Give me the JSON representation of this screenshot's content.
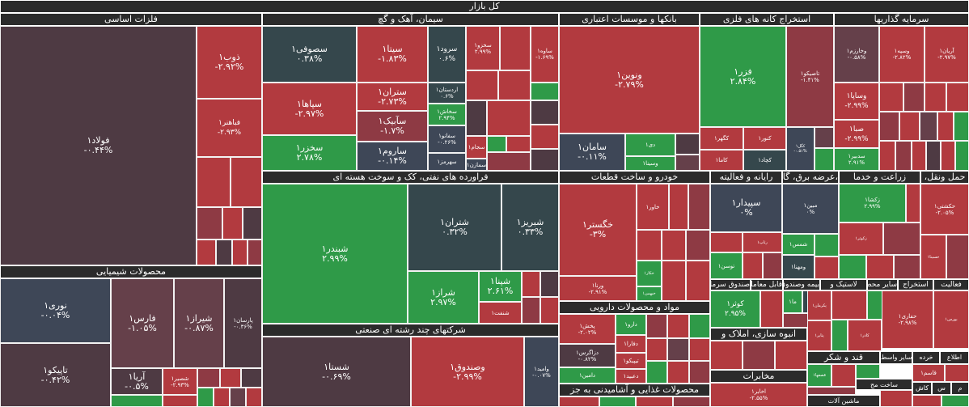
{
  "market_title": "کل بازار",
  "colors": {
    "strong_green": "#2f9a48",
    "light_green": "#3c8f45",
    "dark_slate": "#35474c",
    "slate": "#3e4757",
    "dark_maroon": "#4e3a43",
    "maroon": "#65404a",
    "red": "#b23a3f",
    "dark_red": "#8e3a44",
    "header_bg": "#2b2b2b"
  },
  "sectors": [
    {
      "name": "فلزات اساسی"
    },
    {
      "name": "سیمان، آهک و گچ"
    },
    {
      "name": "بانکها و موسسات اعتباری"
    },
    {
      "name": "استخراج کانه های فلزی"
    },
    {
      "name": "سرمایه گذاریها"
    },
    {
      "name": "محصولات شیمیایی"
    },
    {
      "name": "فراورده های نفتی، کک و سوخت هسته ای"
    },
    {
      "name": "خودرو و ساخت قطعات"
    },
    {
      "name": "رایانه و فعالیته"
    },
    {
      "name": "،عرضه برق، گاز"
    },
    {
      "name": "زراعت و خدما"
    },
    {
      "name": "حمل ونقل،"
    },
    {
      "name": "شرکتهای چند رشته ای صنعتی"
    },
    {
      "name": "مواد و محصولات دارویی"
    },
    {
      "name": "محصولات غذایی و آشامیدنی به جز"
    },
    {
      "name": "صندوق سرمایه گذاری"
    },
    {
      "name": "قابل معامله"
    },
    {
      "name": "بیمه وصندوق بازنشستگی"
    },
    {
      "name": "لاستیک و"
    },
    {
      "name": "سایر محص"
    },
    {
      "name": "استخراج"
    },
    {
      "name": "فعالیت"
    },
    {
      "name": "انبوه سازی، املاک و"
    },
    {
      "name": "قند و شکر"
    },
    {
      "name": "مخابرات"
    }
  ],
  "tiles": [
    {
      "name": "فولاد۱",
      "change": "-۰.۴۴%",
      "color": "#4e3a43"
    },
    {
      "name": "ذوب۱",
      "change": "-۲.۹۲%",
      "color": "#b23a3f"
    },
    {
      "name": "فباهنر۱",
      "change": "-۲.۹۳%",
      "color": "#b23a3f"
    },
    {
      "name": "سصوفی۱",
      "change": "۰.۳۸%",
      "color": "#35474c"
    },
    {
      "name": "سیتا۱",
      "change": "-۱.۸۳%",
      "color": "#b23a3f"
    },
    {
      "name": "سرود۱",
      "change": "۰.۶%",
      "color": "#35474c"
    },
    {
      "name": "سخزو۱",
      "change": "۲.۹۹%",
      "color": "#b23a3f"
    },
    {
      "name": "ساوه۱",
      "change": "-۱.۶۹%",
      "color": "#b23a3f"
    },
    {
      "name": "سپاها۱",
      "change": "-۲.۹۷%",
      "color": "#b23a3f"
    },
    {
      "name": "سخزر۱",
      "change": "۲.۷۸%",
      "color": "#2f9a48"
    },
    {
      "name": "ستران۱",
      "change": "-۲.۷۳%",
      "color": "#b23a3f"
    },
    {
      "name": "سآبیک۱",
      "change": "-۱.۷%",
      "color": "#8e3a44"
    },
    {
      "name": "ساروم۱",
      "change": "-۰.۱۴%",
      "color": "#3e4757"
    },
    {
      "name": "اردستان۱",
      "change": "۰.۶%",
      "color": "#35474c"
    },
    {
      "name": "سخاش۱",
      "change": "۲.۹۴%",
      "color": "#2f9a48"
    },
    {
      "name": "سفانو۱",
      "change": "-۰.۲۶%",
      "color": "#3e4757"
    },
    {
      "name": "سهرمز۱",
      "change": "",
      "color": "#3e4757"
    },
    {
      "name": "سجام۱",
      "change": "",
      "color": "#b23a3f"
    },
    {
      "name": "سمازن۱",
      "change": "",
      "color": "#3e4757"
    },
    {
      "name": "ونوین۱",
      "change": "-۲.۷۹%",
      "color": "#b23a3f"
    },
    {
      "name": "سامان۱",
      "change": "-۰.۱۱%",
      "color": "#3e4757"
    },
    {
      "name": "دی۱",
      "change": "",
      "color": "#2f9a48"
    },
    {
      "name": "وسینا۱",
      "change": "",
      "color": "#2f9a48"
    },
    {
      "name": "فزر۱",
      "change": "۲.۸۴%",
      "color": "#2f9a48"
    },
    {
      "name": "تاصیکو۱",
      "change": "-۱.۴۱%",
      "color": "#8e3a44"
    },
    {
      "name": "کگهر۱",
      "change": "",
      "color": "#b23a3f"
    },
    {
      "name": "کنور۱",
      "change": "",
      "color": "#b23a3f"
    },
    {
      "name": "کاما۱",
      "change": "",
      "color": "#b23a3f"
    },
    {
      "name": "کچاد۱",
      "change": "",
      "color": "#35474c"
    },
    {
      "name": "کگل۱",
      "change": "-۰.۵۱%",
      "color": "#3e4757"
    },
    {
      "name": "وخارزم۱",
      "change": "-۰.۵۸%",
      "color": "#65404a"
    },
    {
      "name": "وسپه۱",
      "change": "-۲.۸۲%",
      "color": "#b23a3f"
    },
    {
      "name": "آریان۱",
      "change": "-۲.۹۷%",
      "color": "#b23a3f"
    },
    {
      "name": "وساپا۱",
      "change": "-۲.۹۹%",
      "color": "#b23a3f"
    },
    {
      "name": "صبا۱",
      "change": "-۲.۹۹%",
      "color": "#b23a3f"
    },
    {
      "name": "سدبیر۱",
      "change": "۲.۹۱%",
      "color": "#2f9a48"
    },
    {
      "name": "نوری۱",
      "change": "-۰.۰۴%",
      "color": "#3e4757"
    },
    {
      "name": "فارس۱",
      "change": "-۱.۰۵%",
      "color": "#65404a"
    },
    {
      "name": "شیراز۱",
      "change": "-۰.۸۷%",
      "color": "#65404a"
    },
    {
      "name": "پارسان۱",
      "change": "-۰.۳۶%",
      "color": "#4e3a43"
    },
    {
      "name": "تاپیکو۱",
      "change": "-۰.۴۲%",
      "color": "#4e3a43"
    },
    {
      "name": "آریا۱",
      "change": "-۰.۵%",
      "color": "#4e3a43"
    },
    {
      "name": "شصیر۱",
      "change": "-۲.۹۳%",
      "color": "#b23a3f"
    },
    {
      "name": "شبندر۱",
      "change": "۲.۹۹%",
      "color": "#2f9a48"
    },
    {
      "name": "شتران۱",
      "change": "۰.۳۲%",
      "color": "#35474c"
    },
    {
      "name": "شبریز۱",
      "change": "۰.۳۳%",
      "color": "#35474c"
    },
    {
      "name": "شراز۱",
      "change": "۲.۹۷%",
      "color": "#2f9a48"
    },
    {
      "name": "شپنا۱",
      "change": "۲.۶۱%",
      "color": "#2f9a48"
    },
    {
      "name": "شنفت۱",
      "change": "",
      "color": "#b23a3f"
    },
    {
      "name": "خگستر۱",
      "change": "-۳%",
      "color": "#b23a3f"
    },
    {
      "name": "خاور۱",
      "change": "",
      "color": "#b23a3f"
    },
    {
      "name": "ورنا۱",
      "change": "-۲.۹۱%",
      "color": "#b23a3f"
    },
    {
      "name": "خکار۱",
      "change": "",
      "color": "#2f9a48"
    },
    {
      "name": "خبهمن۱",
      "change": "",
      "color": "#2f9a48"
    },
    {
      "name": "سپیدار۱",
      "change": "۰%",
      "color": "#3e4757"
    },
    {
      "name": "مبین۱",
      "change": "۰%",
      "color": "#3e4757"
    },
    {
      "name": "زکشا۱",
      "change": "۲.۹۹%",
      "color": "#2f9a48"
    },
    {
      "name": "حکشتی۱",
      "change": "-۲.۰۵%",
      "color": "#b23a3f"
    },
    {
      "name": "رتاپ۱",
      "change": "",
      "color": "#b23a3f"
    },
    {
      "name": "شمس۱",
      "change": "",
      "color": "#2f9a48"
    },
    {
      "name": "زکوثر۱",
      "change": "",
      "color": "#b23a3f"
    },
    {
      "name": "حسینا۱",
      "change": "",
      "color": "#b23a3f"
    },
    {
      "name": "توسن۱",
      "change": "",
      "color": "#2f9a48"
    },
    {
      "name": "ومهنا۱",
      "change": "",
      "color": "#35474c"
    },
    {
      "name": "وصندوق۱",
      "change": "-۲.۹۹%",
      "color": "#b23a3f"
    },
    {
      "name": "شستا۱",
      "change": "-۰.۶۹%",
      "color": "#4e3a43"
    },
    {
      "name": "وامید۱",
      "change": "-۰.۰۷%",
      "color": "#3e4757"
    },
    {
      "name": "پخش۱",
      "change": "-۲.۰۲%",
      "color": "#b23a3f"
    },
    {
      "name": "دارو۱",
      "change": "",
      "color": "#2f9a48"
    },
    {
      "name": "دفارا۱",
      "change": "",
      "color": "#b23a3f"
    },
    {
      "name": "دزاگرس۱",
      "change": "-۰.۸۲%",
      "color": "#4e3a43"
    },
    {
      "name": "تیپیکو۱",
      "change": "",
      "color": "#b23a3f"
    },
    {
      "name": "دامین۱",
      "change": "",
      "color": "#2f9a48"
    },
    {
      "name": "دعبید۱",
      "change": "",
      "color": "#b23a3f"
    },
    {
      "name": "کوثر۱",
      "change": "۲.۹۵%",
      "color": "#2f9a48"
    },
    {
      "name": "ما۱",
      "change": "",
      "color": "#2f9a48"
    },
    {
      "name": "پکرمان۱",
      "change": "",
      "color": "#b23a3f"
    },
    {
      "name": "پتایر۱",
      "change": "",
      "color": "#b23a3f"
    },
    {
      "name": "حفاری۱",
      "change": "-۲.۹۸%",
      "color": "#b23a3f"
    },
    {
      "name": "بورس۱",
      "change": "",
      "color": "#b23a3f"
    },
    {
      "name": "کاذر۱",
      "change": "",
      "color": "#b23a3f"
    },
    {
      "name": "قصفها۱",
      "change": "",
      "color": "#2f9a48"
    },
    {
      "name": "قاسم۱",
      "change": "",
      "color": "#b23a3f"
    },
    {
      "name": "اخابر۱",
      "change": "-۲.۵۵%",
      "color": "#b23a3f"
    }
  ],
  "small_labels": [
    "سایر واسط",
    "خرده",
    "اطلاع",
    "ساخت مح",
    "ماشین آلات",
    "کاش",
    "س",
    "م"
  ]
}
